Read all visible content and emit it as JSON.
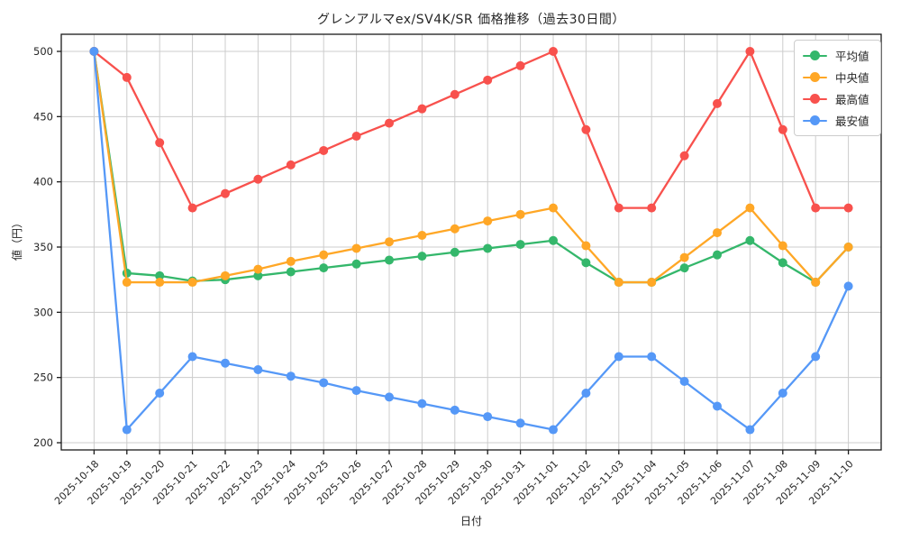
{
  "chart_data": {
    "type": "line",
    "title": "グレンアルマex/SV4K/SR 価格推移（過去30日間）",
    "xlabel": "日付",
    "ylabel": "値（円）",
    "x": [
      "2025-10-18",
      "2025-10-19",
      "2025-10-20",
      "2025-10-21",
      "2025-10-22",
      "2025-10-23",
      "2025-10-24",
      "2025-10-25",
      "2025-10-26",
      "2025-10-27",
      "2025-10-28",
      "2025-10-29",
      "2025-10-30",
      "2025-10-31",
      "2025-11-01",
      "2025-11-02",
      "2025-11-03",
      "2025-11-04",
      "2025-11-05",
      "2025-11-06",
      "2025-11-07",
      "2025-11-08",
      "2025-11-09",
      "2025-11-10"
    ],
    "series": [
      {
        "key": "average",
        "name": "平均値",
        "color": "#34b76b",
        "values": [
          500,
          330,
          328,
          324,
          325,
          328,
          331,
          334,
          337,
          340,
          343,
          346,
          349,
          352,
          355,
          338,
          323,
          323,
          334,
          344,
          355,
          338,
          323,
          350
        ]
      },
      {
        "key": "median",
        "name": "中央値",
        "color": "#ffa726",
        "values": [
          500,
          323,
          323,
          323,
          328,
          333,
          339,
          344,
          349,
          354,
          359,
          364,
          370,
          375,
          380,
          351,
          323,
          323,
          342,
          361,
          380,
          351,
          323,
          350
        ]
      },
      {
        "key": "highest",
        "name": "最高値",
        "color": "#f8514d",
        "values": [
          500,
          480,
          430,
          380,
          391,
          402,
          413,
          424,
          435,
          445,
          456,
          467,
          478,
          489,
          500,
          440,
          380,
          380,
          420,
          460,
          500,
          440,
          380,
          380
        ]
      },
      {
        "key": "lowest",
        "name": "最安値",
        "color": "#5598f7",
        "values": [
          500,
          210,
          238,
          266,
          261,
          256,
          251,
          246,
          240,
          235,
          230,
          225,
          220,
          215,
          210,
          238,
          266,
          266,
          247,
          228,
          210,
          238,
          266,
          320
        ]
      }
    ],
    "yticks": [
      200,
      250,
      300,
      350,
      400,
      450,
      500
    ],
    "ylim": [
      200,
      500
    ],
    "grid": true,
    "legend_position": "upper-right",
    "grid_color": "#cccccc",
    "spine_color": "#1a1a1a"
  }
}
